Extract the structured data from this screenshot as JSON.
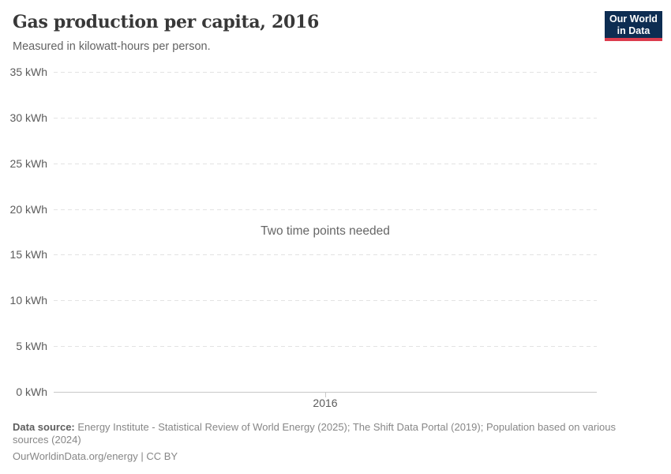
{
  "header": {
    "title": "Gas production per capita, 2016",
    "subtitle": "Measured in kilowatt-hours per person."
  },
  "logo": {
    "line1": "Our World",
    "line2": "in Data",
    "background_color": "#0d2d52",
    "accent_color": "#dc3c4e"
  },
  "chart_data": {
    "type": "line",
    "title": "Gas production per capita, 2016",
    "subtitle": "Measured in kilowatt-hours per person.",
    "ylabel": "kWh",
    "ytick_suffix": " kWh",
    "yticks": [
      0,
      5,
      10,
      15,
      20,
      25,
      30,
      35
    ],
    "ylim": [
      0,
      35
    ],
    "xticks": [
      "2016"
    ],
    "series": [],
    "empty_message": "Two time points needed",
    "grid": true,
    "gridline_color": "#e3e3e3",
    "axis_color": "#c8c8c8"
  },
  "footer": {
    "datasource_label": "Data source:",
    "datasource_text": " Energy Institute - Statistical Review of World Energy (2025); The Shift Data Portal (2019); Population based on various sources (2024)",
    "link_line": "OurWorldinData.org/energy | CC BY"
  }
}
